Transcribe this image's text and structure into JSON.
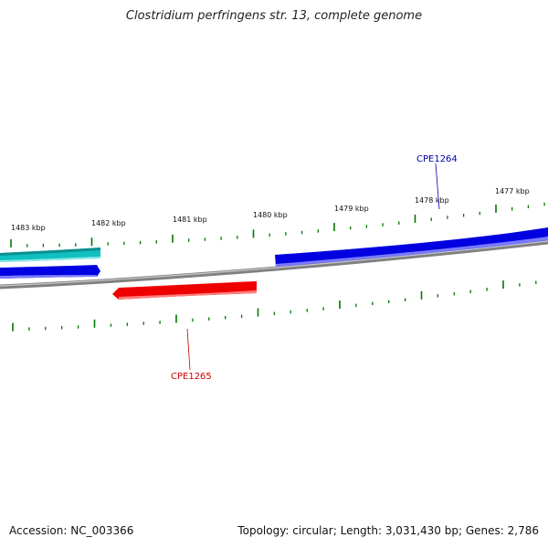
{
  "title": "Clostridium perfringens str. 13, complete genome",
  "footer": {
    "accession_label": "Accession:",
    "accession": "NC_003366",
    "topology_label": "Topology:",
    "topology": "circular",
    "length_label": "Length:",
    "length": "3,031,430 bp",
    "genes_label": "Genes:",
    "genes": "2,786"
  },
  "colors": {
    "backbone": "#808080",
    "forward_gene": "#0000e0",
    "reverse_gene": "#ee0000",
    "other_feature": "#10c0c0",
    "tick": "#007700",
    "forward_label": "#0000aa",
    "reverse_label": "#cc0000"
  },
  "ticks": {
    "labels": [
      "1483 kbp",
      "1482 kbp",
      "1481 kbp",
      "1480 kbp",
      "1479 kbp",
      "1478 kbp",
      "1477 kbp"
    ]
  },
  "genes": [
    {
      "label": "CPE1264",
      "strand": "forward"
    },
    {
      "label": "CPE1265",
      "strand": "reverse"
    }
  ]
}
